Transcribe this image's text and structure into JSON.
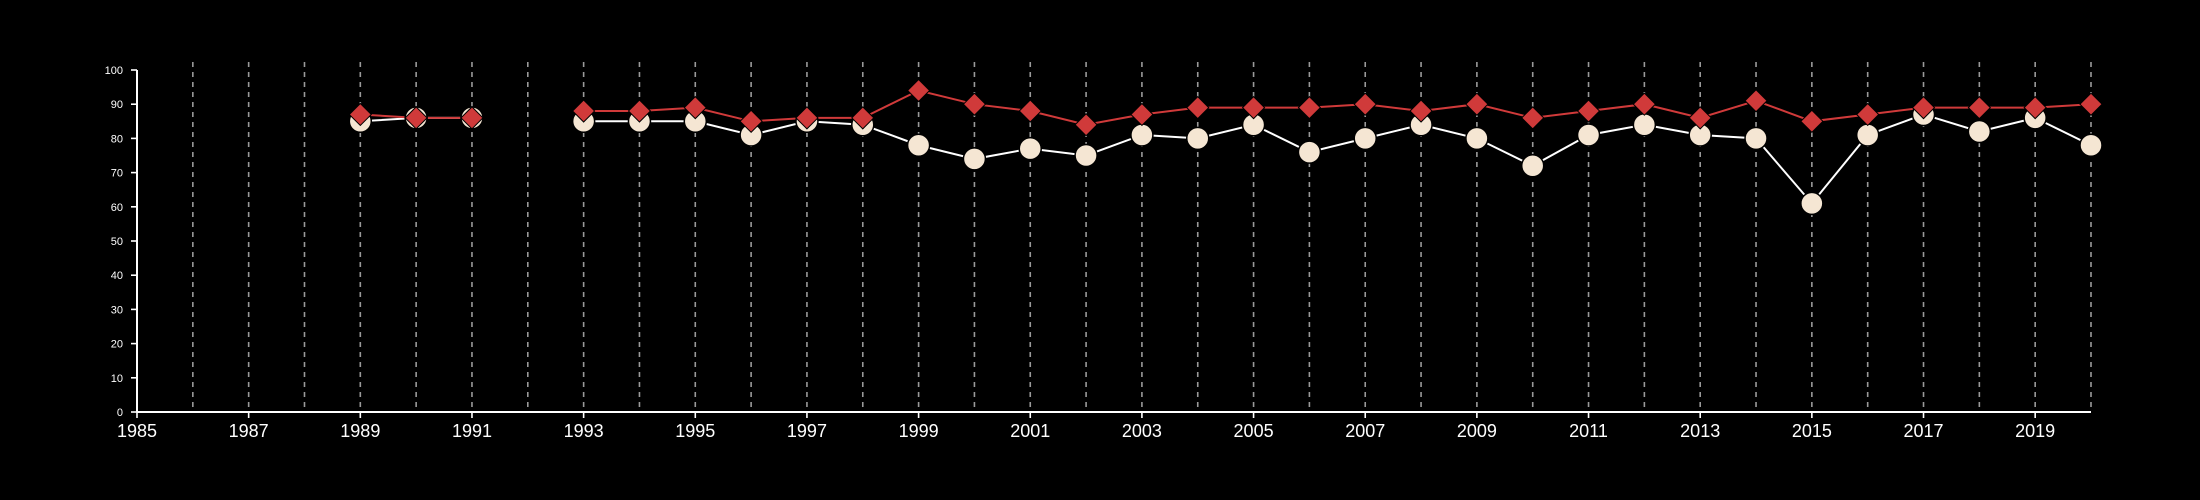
{
  "chart_data": {
    "type": "line",
    "title": "",
    "xlabel": "",
    "ylabel": "",
    "xlim": [
      1985,
      2020
    ],
    "ylim": [
      0,
      100
    ],
    "x_ticks": [
      "1985",
      "1987",
      "1989",
      "1991",
      "1993",
      "1995",
      "1997",
      "1999",
      "2001",
      "2003",
      "2005",
      "2007",
      "2009",
      "2011",
      "2013",
      "2015",
      "2017",
      "2019"
    ],
    "y_ticks": [
      "0",
      "10",
      "20",
      "30",
      "40",
      "50",
      "60",
      "70",
      "80",
      "90",
      "100"
    ],
    "vertical_gridlines": "dashed, every year from 1986 to 2020",
    "background_color": "#000000",
    "axis_color": "#ffffff",
    "series": [
      {
        "marker": "circle",
        "color": "#f5e6d3",
        "line_color": "#ffffff",
        "segments": [
          [
            [
              1989,
              85
            ],
            [
              1990,
              86
            ],
            [
              1991,
              86
            ]
          ],
          [
            [
              1993,
              85
            ],
            [
              1994,
              85
            ],
            [
              1995,
              85
            ],
            [
              1996,
              81
            ],
            [
              1997,
              85
            ],
            [
              1998,
              84
            ],
            [
              1999,
              78
            ],
            [
              2000,
              74
            ],
            [
              2001,
              77
            ],
            [
              2002,
              75
            ],
            [
              2003,
              81
            ],
            [
              2004,
              80
            ],
            [
              2005,
              84
            ],
            [
              2006,
              76
            ],
            [
              2007,
              80
            ],
            [
              2008,
              84
            ],
            [
              2009,
              80
            ],
            [
              2010,
              72
            ],
            [
              2011,
              81
            ],
            [
              2012,
              84
            ],
            [
              2013,
              81
            ],
            [
              2014,
              80
            ],
            [
              2015,
              61
            ],
            [
              2016,
              81
            ],
            [
              2017,
              87
            ],
            [
              2018,
              82
            ],
            [
              2019,
              86
            ],
            [
              2020,
              78
            ]
          ]
        ]
      },
      {
        "marker": "diamond",
        "color": "#d03a3a",
        "line_color": "#d03a3a",
        "segments": [
          [
            [
              1989,
              87
            ],
            [
              1990,
              86
            ],
            [
              1991,
              86
            ]
          ],
          [
            [
              1993,
              88
            ],
            [
              1994,
              88
            ],
            [
              1995,
              89
            ],
            [
              1996,
              85
            ],
            [
              1997,
              86
            ],
            [
              1998,
              86
            ],
            [
              1999,
              94
            ],
            [
              2000,
              90
            ],
            [
              2001,
              88
            ],
            [
              2002,
              84
            ],
            [
              2003,
              87
            ],
            [
              2004,
              89
            ],
            [
              2005,
              89
            ],
            [
              2006,
              89
            ],
            [
              2007,
              90
            ],
            [
              2008,
              88
            ],
            [
              2009,
              90
            ],
            [
              2010,
              86
            ],
            [
              2011,
              88
            ],
            [
              2012,
              90
            ],
            [
              2013,
              86
            ],
            [
              2014,
              91
            ],
            [
              2015,
              85
            ],
            [
              2016,
              87
            ],
            [
              2017,
              89
            ],
            [
              2018,
              89
            ],
            [
              2019,
              89
            ],
            [
              2020,
              90
            ]
          ]
        ]
      }
    ]
  }
}
